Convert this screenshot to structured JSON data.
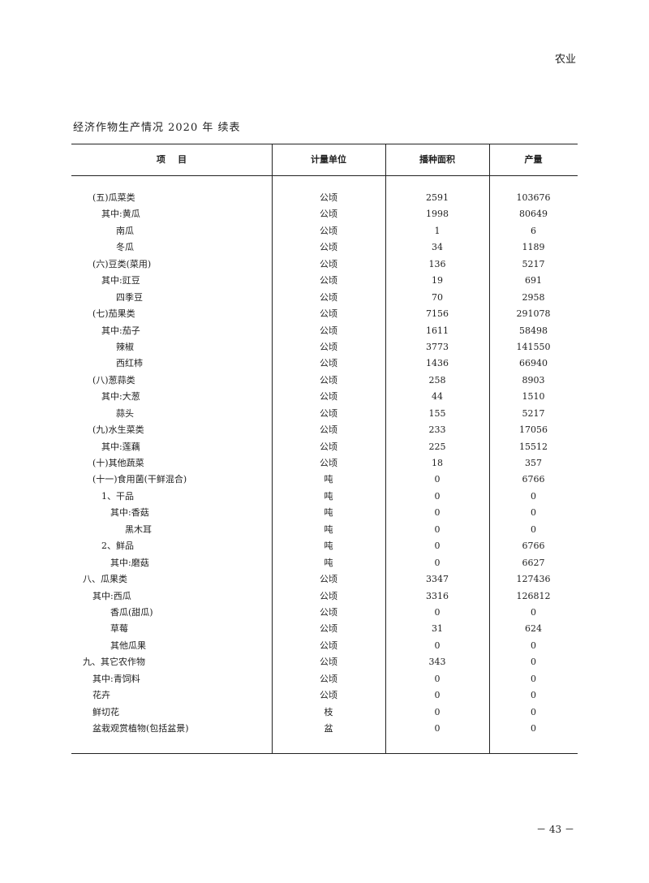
{
  "running_head": "农业",
  "table_title": "经济作物生产情况 2020 年  续表",
  "columns": [
    "项    目",
    "计量单位",
    "播种面积",
    "产量"
  ],
  "rows": [
    {
      "level": 1,
      "name": "(五)瓜菜类",
      "unit": "公顷",
      "area": "2591",
      "output": "103676"
    },
    {
      "level": 2,
      "name": "其中:黄瓜",
      "unit": "公顷",
      "area": "1998",
      "output": "80649"
    },
    {
      "level": 4,
      "name": "南瓜",
      "unit": "公顷",
      "area": "1",
      "output": "6"
    },
    {
      "level": 4,
      "name": "冬瓜",
      "unit": "公顷",
      "area": "34",
      "output": "1189"
    },
    {
      "level": 1,
      "name": "(六)豆类(菜用)",
      "unit": "公顷",
      "area": "136",
      "output": "5217"
    },
    {
      "level": 2,
      "name": "其中:豇豆",
      "unit": "公顷",
      "area": "19",
      "output": "691"
    },
    {
      "level": 4,
      "name": "四季豆",
      "unit": "公顷",
      "area": "70",
      "output": "2958"
    },
    {
      "level": 1,
      "name": "(七)茄果类",
      "unit": "公顷",
      "area": "7156",
      "output": "291078"
    },
    {
      "level": 2,
      "name": "其中:茄子",
      "unit": "公顷",
      "area": "1611",
      "output": "58498"
    },
    {
      "level": 4,
      "name": "辣椒",
      "unit": "公顷",
      "area": "3773",
      "output": "141550"
    },
    {
      "level": 4,
      "name": "西红柿",
      "unit": "公顷",
      "area": "1436",
      "output": "66940"
    },
    {
      "level": 1,
      "name": "(八)葱蒜类",
      "unit": "公顷",
      "area": "258",
      "output": "8903"
    },
    {
      "level": 2,
      "name": "其中:大葱",
      "unit": "公顷",
      "area": "44",
      "output": "1510"
    },
    {
      "level": 4,
      "name": "蒜头",
      "unit": "公顷",
      "area": "155",
      "output": "5217"
    },
    {
      "level": 1,
      "name": "(九)水生菜类",
      "unit": "公顷",
      "area": "233",
      "output": "17056"
    },
    {
      "level": 2,
      "name": "其中:莲藕",
      "unit": "公顷",
      "area": "225",
      "output": "15512"
    },
    {
      "level": 1,
      "name": "(十)其他蔬菜",
      "unit": "公顷",
      "area": "18",
      "output": "357"
    },
    {
      "level": 1,
      "name": "(十一)食用菌(干鲜混合)",
      "unit": "吨",
      "area": "0",
      "output": "6766"
    },
    {
      "level": 2,
      "name": "1、干品",
      "unit": "吨",
      "area": "0",
      "output": "0"
    },
    {
      "level": 3,
      "name": "其中:香菇",
      "unit": "吨",
      "area": "0",
      "output": "0"
    },
    {
      "level": 5,
      "name": "黑木耳",
      "unit": "吨",
      "area": "0",
      "output": "0"
    },
    {
      "level": 2,
      "name": "2、鲜品",
      "unit": "吨",
      "area": "0",
      "output": "6766"
    },
    {
      "level": 3,
      "name": "其中:磨菇",
      "unit": "吨",
      "area": "0",
      "output": "6627"
    },
    {
      "level": 0,
      "name": "八、瓜果类",
      "unit": "公顷",
      "area": "3347",
      "output": "127436"
    },
    {
      "level": 1,
      "name": "其中:西瓜",
      "unit": "公顷",
      "area": "3316",
      "output": "126812"
    },
    {
      "level": 3,
      "name": "香瓜(甜瓜)",
      "unit": "公顷",
      "area": "0",
      "output": "0"
    },
    {
      "level": 3,
      "name": "草莓",
      "unit": "公顷",
      "area": "31",
      "output": "624"
    },
    {
      "level": 3,
      "name": "其他瓜果",
      "unit": "公顷",
      "area": "0",
      "output": "0"
    },
    {
      "level": 0,
      "name": "九、其它农作物",
      "unit": "公顷",
      "area": "343",
      "output": "0"
    },
    {
      "level": 1,
      "name": "其中:青饲料",
      "unit": "公顷",
      "area": "0",
      "output": "0"
    },
    {
      "level": 1,
      "name": "花卉",
      "unit": "公顷",
      "area": "0",
      "output": "0"
    },
    {
      "level": 1,
      "name": "鲜切花",
      "unit": "枝",
      "area": "0",
      "output": "0"
    },
    {
      "level": 1,
      "name": "盆栽观赏植物(包括盆景)",
      "unit": "盆",
      "area": "0",
      "output": "0"
    }
  ],
  "page_number": "－ 43 －"
}
